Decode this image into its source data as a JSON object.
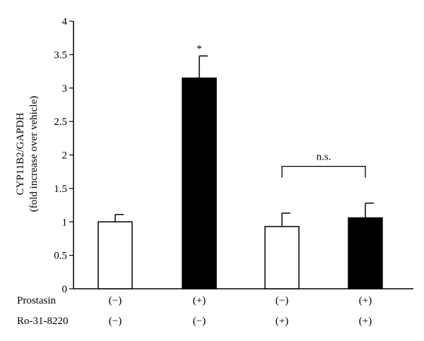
{
  "chart_data": {
    "type": "bar",
    "ylabel_line1": "CYP11B2/GAPDH",
    "ylabel_line2": "(fold increase over vehicle)",
    "ylim": [
      0,
      4
    ],
    "yticks": [
      "0",
      "0.5",
      "1",
      "1.5",
      "2",
      "2.5",
      "3",
      "3.5",
      "4"
    ],
    "yticks_values": [
      0,
      0.5,
      1,
      1.5,
      2,
      2.5,
      3,
      3.5,
      4
    ],
    "grid": false,
    "bars": [
      {
        "value": 1.0,
        "error": 0.11,
        "color": "#ffffff",
        "annotation": ""
      },
      {
        "value": 3.15,
        "error": 0.33,
        "color": "#000000",
        "annotation": "*"
      },
      {
        "value": 0.93,
        "error": 0.2,
        "color": "#ffffff",
        "annotation": ""
      },
      {
        "value": 1.06,
        "error": 0.22,
        "color": "#000000",
        "annotation": ""
      }
    ],
    "conditions": [
      {
        "name": "Prostasin",
        "values": [
          "(−)",
          "(+)",
          "(−)",
          "(+)"
        ]
      },
      {
        "name": "Ro-31-8220",
        "values": [
          "(−)",
          "(−)",
          "(+)",
          "(+)"
        ]
      }
    ],
    "significance": {
      "from_bar": 2,
      "to_bar": 3,
      "level": 1.83,
      "label": "n.s."
    }
  }
}
